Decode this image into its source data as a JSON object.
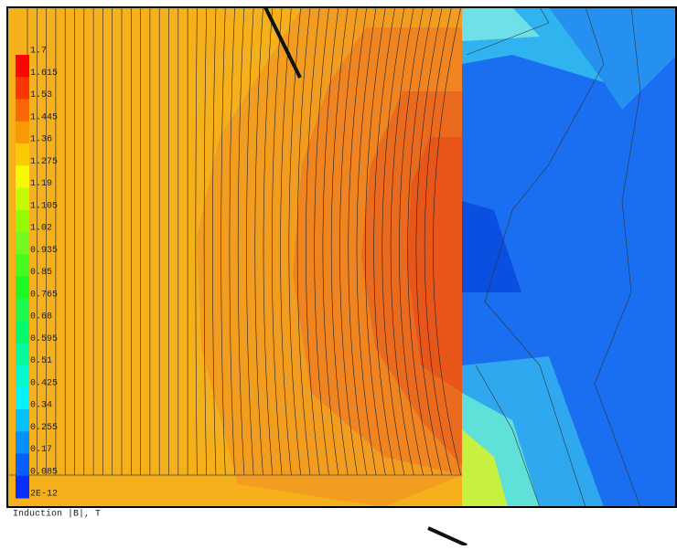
{
  "legend": {
    "labels": [
      "1.7",
      "1.615",
      "1.53",
      "1.445",
      "1.36",
      "1.275",
      "1.19",
      "1.105",
      "1.02",
      "0.935",
      "0.85",
      "0.765",
      "0.68",
      "0.595",
      "0.51",
      "0.425",
      "0.34",
      "0.255",
      "0.17",
      "0.085",
      "2E-12"
    ]
  },
  "footer": "Induction  |B|, T"
}
